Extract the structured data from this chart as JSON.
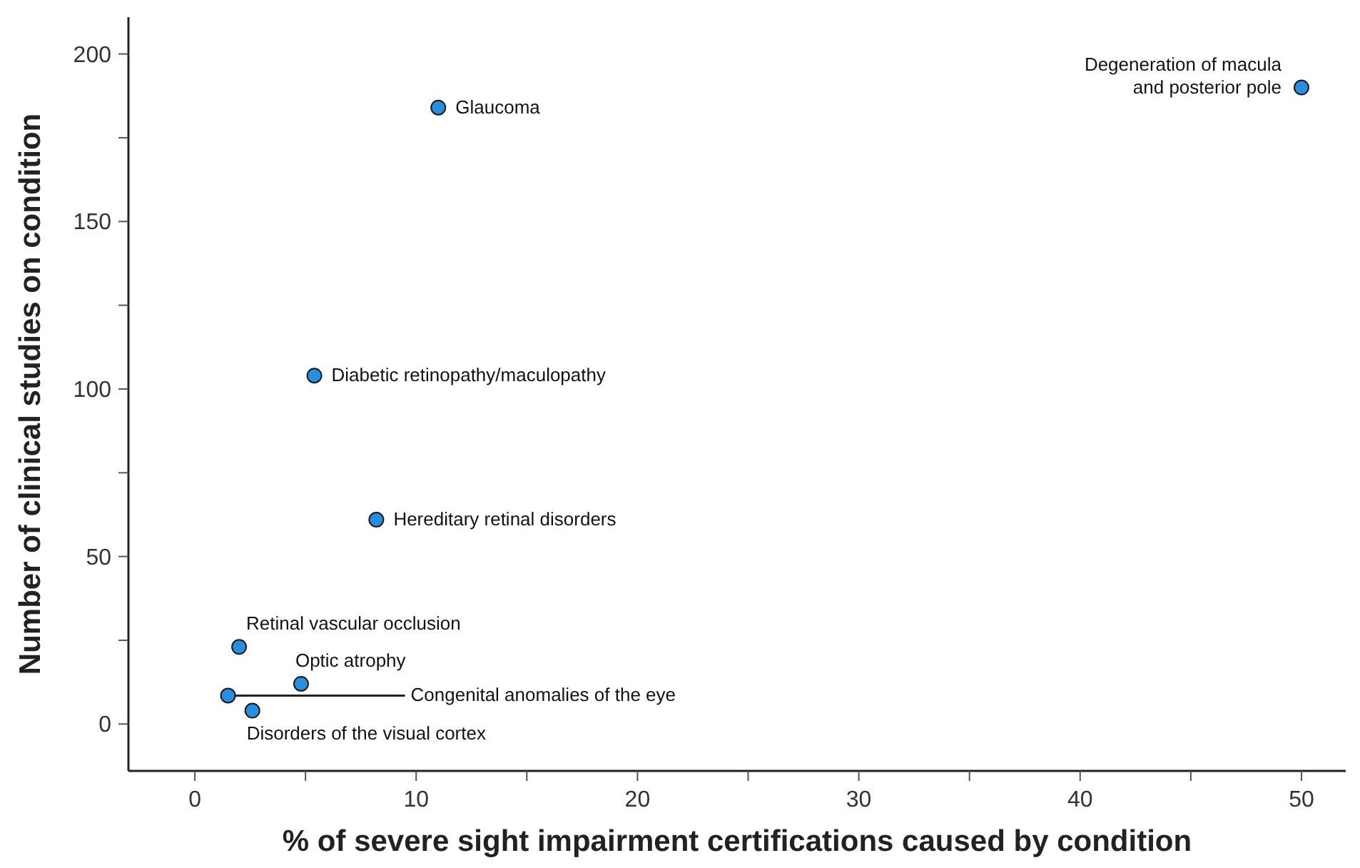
{
  "chart_data": {
    "type": "scatter",
    "xlabel": "% of severe sight impairment certifications caused by condition",
    "ylabel": "Number of clinical studies on condition",
    "xlim": [
      -3,
      52
    ],
    "ylim": [
      -14,
      211
    ],
    "xticks": [
      0,
      {
        "value": 5,
        "label": null
      },
      10,
      {
        "value": 15,
        "label": null
      },
      20,
      {
        "value": 25,
        "label": null
      },
      30,
      {
        "value": 35,
        "label": null
      },
      40,
      {
        "value": 45,
        "label": null
      },
      50
    ],
    "yticks": [
      0,
      {
        "value": 25,
        "label": null
      },
      50,
      {
        "value": 75,
        "label": null
      },
      100,
      {
        "value": 125,
        "label": null
      },
      150,
      {
        "value": 175,
        "label": null
      },
      200
    ],
    "grid": false,
    "marker": "circle",
    "series": [
      {
        "color": "#2a8ee0",
        "x": [
          11,
          50,
          5.4,
          8.2,
          2,
          4.8,
          1.5,
          2.6
        ],
        "values": [
          184,
          190,
          104,
          61,
          23,
          12,
          8.5,
          4
        ]
      }
    ],
    "annotations": [
      {
        "text": "Glaucoma",
        "x": 11,
        "y": 184
      },
      {
        "text": "Degeneration of macula and posterior pole",
        "x": 50,
        "y": 190
      },
      {
        "text": "Diabetic retinopathy/maculopathy",
        "x": 5.4,
        "y": 104
      },
      {
        "text": "Hereditary retinal disorders",
        "x": 8.2,
        "y": 61
      },
      {
        "text": "Retinal vascular occlusion",
        "x": 2,
        "y": 23
      },
      {
        "text": "Optic atrophy",
        "x": 4.8,
        "y": 12
      },
      {
        "text": "Congenital anomalies of the eye",
        "x": 1.5,
        "y": 8.5
      },
      {
        "text": "Disorders of the visual cortex",
        "x": 2.6,
        "y": 4
      }
    ]
  }
}
